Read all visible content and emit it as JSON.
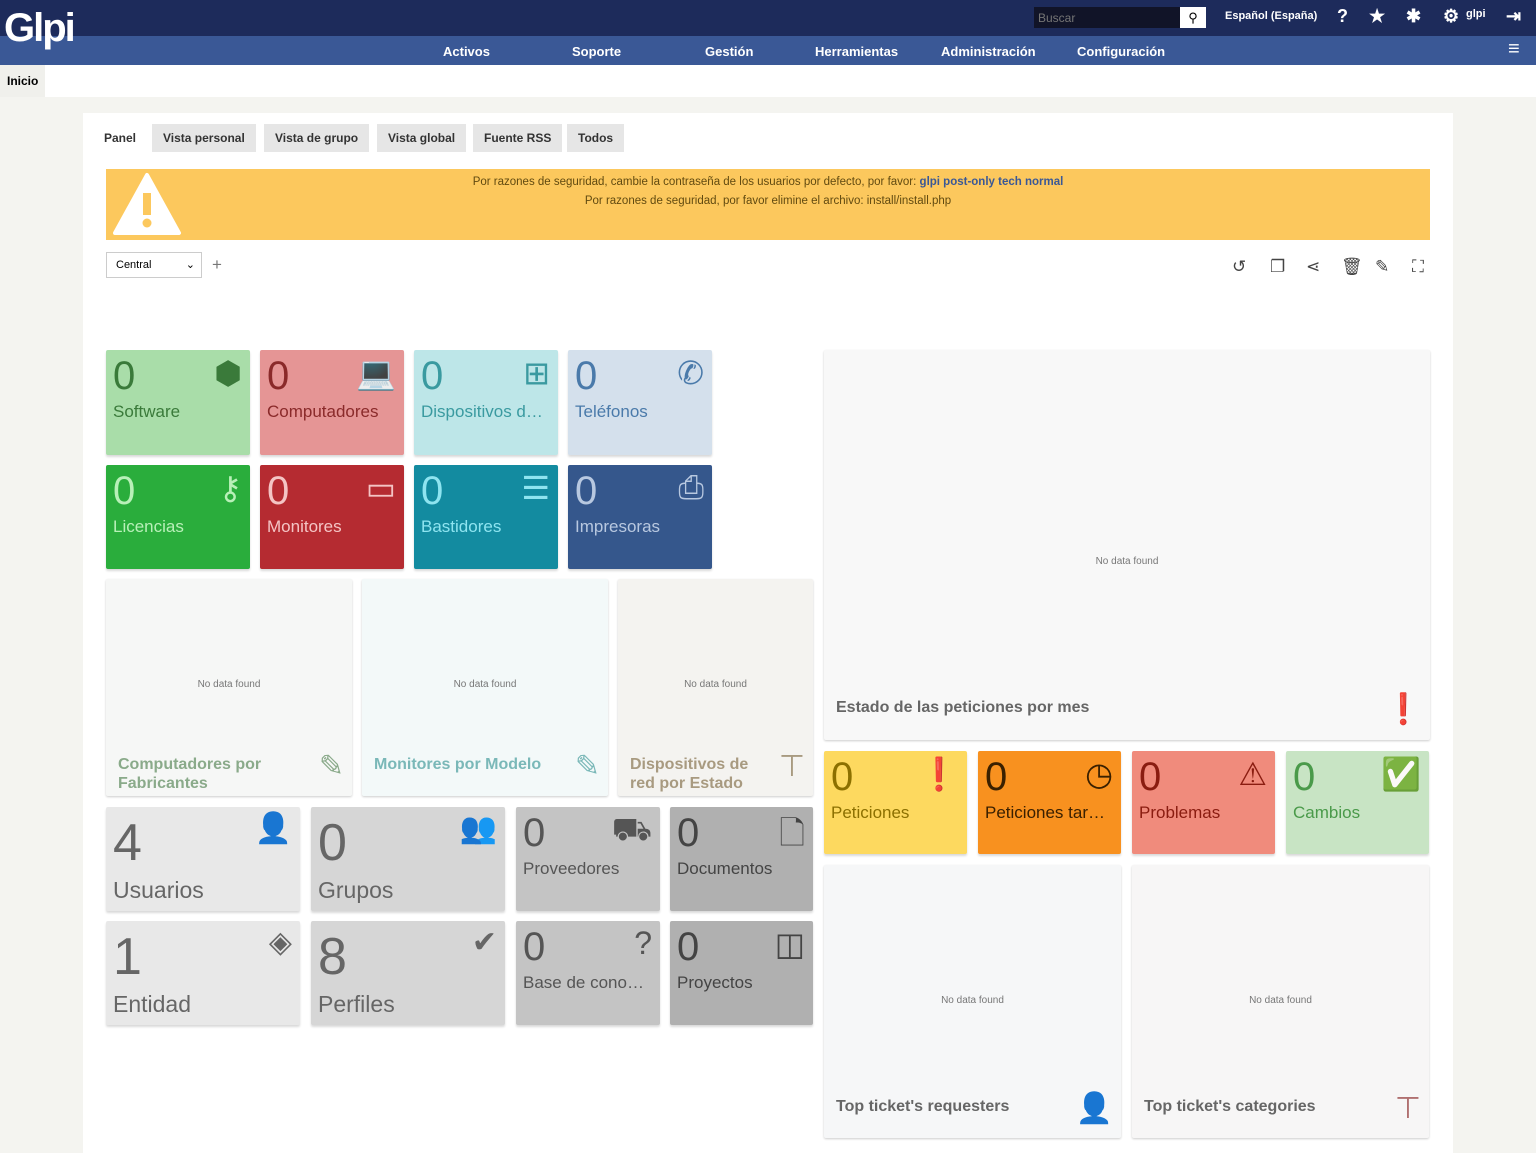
{
  "header": {
    "logo": "Glpi",
    "search_placeholder": "Buscar",
    "language": "Español (España)",
    "user": "glpi",
    "menu": [
      "Activos",
      "Soporte",
      "Gestión",
      "Herramientas",
      "Administración",
      "Configuración"
    ]
  },
  "breadcrumb": "Inicio",
  "tabs": [
    "Panel",
    "Vista personal",
    "Vista de grupo",
    "Vista global",
    "Fuente RSS",
    "Todos"
  ],
  "alert": {
    "line1": "Por razones de seguridad, cambie la contraseña de los usuarios por defecto, por favor:",
    "users": "glpi post-only tech normal",
    "line2": "Por razones de seguridad, por favor elimine el archivo: install/install.php"
  },
  "dashboard": {
    "selected": "Central"
  },
  "cards": [
    {
      "value": "0",
      "label": "Software",
      "icon": "cube-icon",
      "bg": "#a9dda9",
      "fg": "#3a7a3a"
    },
    {
      "value": "0",
      "label": "Computadores",
      "icon": "laptop-icon",
      "bg": "#e59595",
      "fg": "#8a2a2a"
    },
    {
      "value": "0",
      "label": "Dispositivos d…",
      "icon": "network-icon",
      "bg": "#bde6e8",
      "fg": "#3a9aa0"
    },
    {
      "value": "0",
      "label": "Teléfonos",
      "icon": "phone-icon",
      "bg": "#d4e0ec",
      "fg": "#4a7aaa"
    },
    {
      "value": "0",
      "label": "Licencias",
      "icon": "key-icon",
      "bg": "#2aad3c",
      "fg": "#b8f0b8"
    },
    {
      "value": "0",
      "label": "Monitores",
      "icon": "monitor-icon",
      "bg": "#b52b31",
      "fg": "#f4c4c4"
    },
    {
      "value": "0",
      "label": "Bastidores",
      "icon": "server-icon",
      "bg": "#138ba0",
      "fg": "#8ee4f0"
    },
    {
      "value": "0",
      "label": "Impresoras",
      "icon": "printer-icon",
      "bg": "#35578c",
      "fg": "#b8c8e0"
    },
    {
      "value": "4",
      "label": "Usuarios",
      "icon": "user-icon",
      "bg": "#e8e8e8",
      "fg": "#666"
    },
    {
      "value": "0",
      "label": "Grupos",
      "icon": "users-icon",
      "bg": "#d6d6d6",
      "fg": "#666"
    },
    {
      "value": "0",
      "label": "Proveedores",
      "icon": "dolly-icon",
      "bg": "#c4c4c4",
      "fg": "#555"
    },
    {
      "value": "0",
      "label": "Documentos",
      "icon": "file-icon",
      "bg": "#b0b0b0",
      "fg": "#444"
    },
    {
      "value": "1",
      "label": "Entidad",
      "icon": "layers-icon",
      "bg": "#e8e8e8",
      "fg": "#666"
    },
    {
      "value": "8",
      "label": "Perfiles",
      "icon": "user-check-icon",
      "bg": "#d6d6d6",
      "fg": "#666"
    },
    {
      "value": "0",
      "label": "Base de cono…",
      "icon": "question-icon",
      "bg": "#c4c4c4",
      "fg": "#555"
    },
    {
      "value": "0",
      "label": "Proyectos",
      "icon": "columns-icon",
      "bg": "#b0b0b0",
      "fg": "#444"
    },
    {
      "value": "0",
      "label": "Peticiones",
      "icon": "exclamation-circle-icon",
      "bg": "#fdd95f",
      "fg": "#8c7000"
    },
    {
      "value": "0",
      "label": "Peticiones tar…",
      "icon": "clock-icon",
      "bg": "#f8911f",
      "fg": "#3a2000"
    },
    {
      "value": "0",
      "label": "Problemas",
      "icon": "warning-icon",
      "bg": "#f08b7c",
      "fg": "#8a1c10"
    },
    {
      "value": "0",
      "label": "Cambios",
      "icon": "clipboard-check-icon",
      "bg": "#c8e4c4",
      "fg": "#4a9a4a"
    }
  ],
  "charts": [
    {
      "title": "Computadores por Fabricantes",
      "empty": "No data found",
      "icon": "edit-icon",
      "bg": "#f6f7f6",
      "fg": "#8aaa8a"
    },
    {
      "title": "Monitores por Modelo",
      "empty": "No data found",
      "icon": "edit-icon",
      "bg": "#f3f9f9",
      "fg": "#7ab8b8"
    },
    {
      "title": "Dispositivos de red por Estado",
      "empty": "No data found",
      "icon": "sitemap-icon",
      "bg": "#f4f3f0",
      "fg": "#a89a80"
    },
    {
      "title": "Estado de las peticiones por mes",
      "empty": "No data found",
      "icon": "exclamation-circle-icon",
      "bg": "#f8f8f8",
      "fg": "#888"
    },
    {
      "title": "Top ticket's requesters",
      "empty": "No data found",
      "icon": "user-icon",
      "bg": "#f6f7f8",
      "fg": "#6a86aa"
    },
    {
      "title": "Top ticket's categories",
      "empty": "No data found",
      "icon": "sitemap-icon",
      "bg": "#f7f6f6",
      "fg": "#b07070"
    }
  ]
}
